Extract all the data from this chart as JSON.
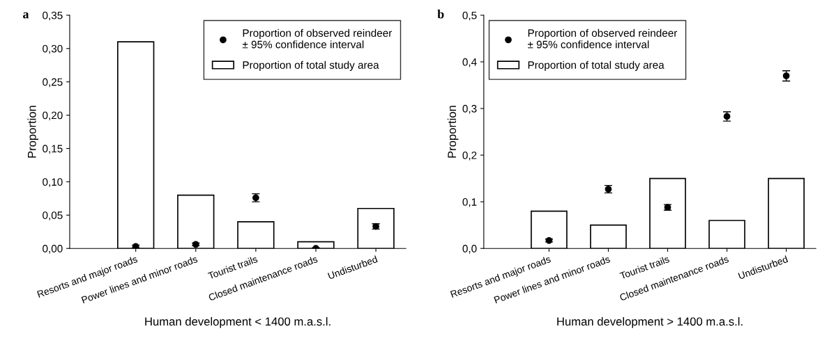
{
  "chart_data": [
    {
      "type": "bar",
      "annotations": [
        "a"
      ],
      "ylabel": "Proportion",
      "xlabel": "Human development < 1400 m.a.s.l.",
      "categories": [
        "Resorts and major roads",
        "Power lines and minor roads",
        "Tourist trails",
        "Closed maintenance roads",
        "Undisturbed"
      ],
      "series": [
        {
          "type": "scatter",
          "name": "Proportion of observed reindeer\n± 95% confidence interval",
          "color": "#000000",
          "values": [
            0.003,
            0.006,
            0.076,
            0.0,
            0.033
          ],
          "errors": [
            0.002,
            0.002,
            0.006,
            0.001,
            0.004
          ]
        },
        {
          "name": "Proportion of total study area",
          "color": "#ffffff",
          "values": [
            0.31,
            0.08,
            0.04,
            0.01,
            0.06
          ]
        }
      ],
      "ylim": [
        0,
        0.35
      ],
      "yticks": [
        {
          "value": 0,
          "label": "0,00"
        },
        {
          "value": 0.05,
          "label": "0,05"
        },
        {
          "value": 0.1,
          "label": "0,10"
        },
        {
          "value": 0.15,
          "label": "0,15"
        },
        {
          "value": 0.2,
          "label": "0,20"
        },
        {
          "value": 0.25,
          "label": "0,25"
        },
        {
          "value": 0.3,
          "label": "0,30"
        },
        {
          "value": 0.35,
          "label": "0,35"
        }
      ],
      "legend": "top right",
      "marker": "circle",
      "grid": false
    },
    {
      "type": "bar",
      "annotations": [
        "b"
      ],
      "ylabel": "Proportion",
      "xlabel": "Human development > 1400 m.a.s.l.",
      "categories": [
        "Resorts and major roads",
        "Power lines and minor roads",
        "Tourist trails",
        "Closed maintenance roads",
        "Undisturbed"
      ],
      "series": [
        {
          "type": "scatter",
          "name": "Proportion of observed reindeer\n± 95% confidence interval",
          "color": "#000000",
          "values": [
            0.017,
            0.127,
            0.088,
            0.283,
            0.37
          ],
          "errors": [
            0.003,
            0.008,
            0.006,
            0.01,
            0.011
          ]
        },
        {
          "name": "Proportion of total study area",
          "color": "#ffffff",
          "values": [
            0.08,
            0.05,
            0.15,
            0.06,
            0.15
          ]
        }
      ],
      "ylim": [
        0,
        0.5
      ],
      "yticks": [
        {
          "value": 0,
          "label": "0,0"
        },
        {
          "value": 0.1,
          "label": "0,1"
        },
        {
          "value": 0.2,
          "label": "0,2"
        },
        {
          "value": 0.3,
          "label": "0,3"
        },
        {
          "value": 0.4,
          "label": "0,4"
        },
        {
          "value": 0.5,
          "label": "0,5"
        }
      ],
      "legend": "top left",
      "marker": "circle",
      "grid": false
    }
  ]
}
